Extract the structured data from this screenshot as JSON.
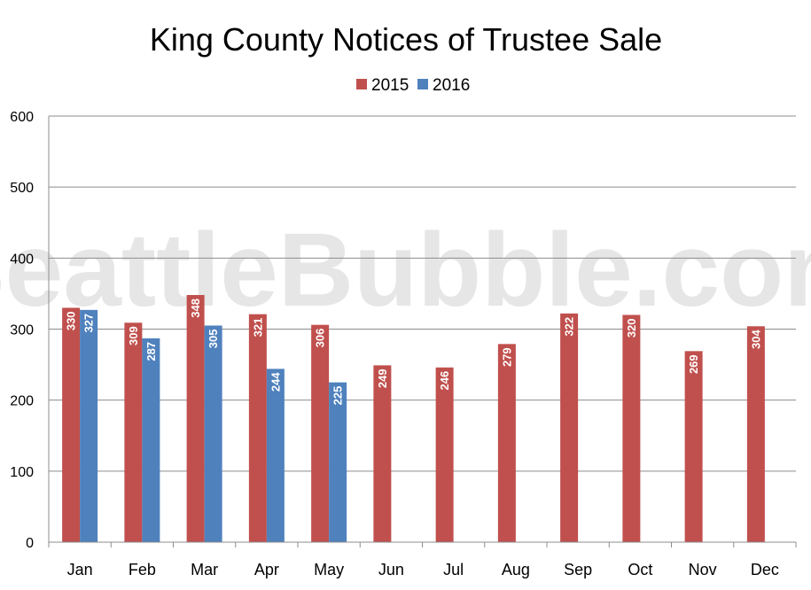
{
  "chart_data": {
    "type": "bar",
    "title": "King County Notices of Trustee Sale",
    "watermark": "SeattleBubble.com",
    "categories": [
      "Jan",
      "Feb",
      "Mar",
      "Apr",
      "May",
      "Jun",
      "Jul",
      "Aug",
      "Sep",
      "Oct",
      "Nov",
      "Dec"
    ],
    "series": [
      {
        "name": "2015",
        "color": "#c0504d",
        "values": [
          330,
          309,
          348,
          321,
          306,
          249,
          246,
          279,
          322,
          320,
          269,
          304
        ]
      },
      {
        "name": "2016",
        "color": "#4f81bd",
        "values": [
          327,
          287,
          305,
          244,
          225,
          null,
          null,
          null,
          null,
          null,
          null,
          null
        ]
      }
    ],
    "ylim": [
      0,
      600
    ],
    "yticks": [
      0,
      100,
      200,
      300,
      400,
      500,
      600
    ],
    "grid": true,
    "legend_position": "top-center",
    "data_labels": true
  }
}
